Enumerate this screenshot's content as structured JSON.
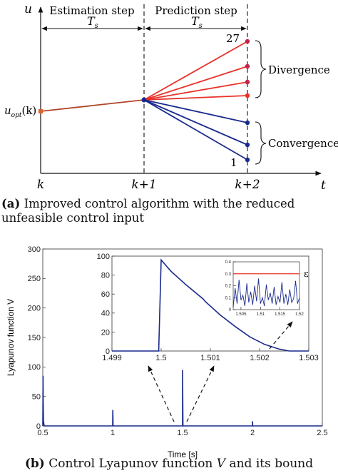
{
  "figure_a": {
    "axis_y_label": "u",
    "axis_x_label": "t",
    "phase_estimation": "Estimation step",
    "phase_prediction": "Prediction step",
    "period_label_1": "T",
    "period_label_1_sub": "s",
    "period_label_2": "T",
    "period_label_2_sub": "s",
    "u_opt_label_main": "u",
    "u_opt_label_sub": "opt",
    "u_opt_label_arg": "(k)",
    "top_index": "27",
    "bottom_index": "1",
    "divergence_label": "Divergence",
    "convergence_label": "Convergence",
    "x_tick_k": "k",
    "x_tick_k1": "k+1",
    "x_tick_k2": "k+2",
    "divergence_color": "#e8322a",
    "convergence_color": "#1a2a8c",
    "history_color": "#b0442a",
    "caption_tag": "(a)",
    "caption_text": "Improved control algorithm with the reduced unfeasible control input"
  },
  "figure_b": {
    "ylabel": "Lyapunov function V",
    "xlabel": "Time [s]",
    "epsilon_label": "ε",
    "caption_tag": "(b)",
    "caption_text_pre": "Control Lyapunov function",
    "caption_text_var": "V",
    "caption_text_post": "and its bound"
  },
  "chart_data": [
    {
      "type": "line",
      "title": "",
      "xlabel": "Time [s]",
      "ylabel": "Lyapunov function V",
      "xlim": [
        0.5,
        2.5
      ],
      "ylim": [
        0,
        300
      ],
      "x_ticks": [
        "0.5",
        "1",
        "1.5",
        "2",
        "2.5"
      ],
      "y_ticks": [
        "0",
        "50",
        "100",
        "150",
        "200",
        "250",
        "300"
      ],
      "grid": false,
      "color": "#1a2a8c",
      "series": [
        {
          "x": [
            0.5,
            0.502,
            0.503,
            0.505,
            0.51,
            1.0,
            1.001,
            1.003,
            1.5,
            1.5001,
            1.503,
            1.5031,
            2.0,
            2.001,
            2.002,
            2.5
          ],
          "y": [
            0,
            85,
            40,
            8,
            0,
            0,
            27,
            0,
            0,
            95,
            0,
            0,
            0,
            8,
            0,
            0
          ]
        }
      ]
    },
    {
      "type": "line",
      "title": "",
      "xlabel": "",
      "ylabel": "",
      "xlim": [
        1.499,
        1.503
      ],
      "ylim": [
        0,
        100
      ],
      "x_ticks": [
        "1.499",
        "1.5",
        "1.501",
        "1.502",
        "1.503"
      ],
      "y_ticks": [
        "0",
        "20",
        "40",
        "60",
        "80",
        "100"
      ],
      "grid": false,
      "color": "#1a2a8c",
      "series": [
        {
          "x": [
            1.499,
            1.49995,
            1.5,
            1.5002,
            1.5005,
            1.50085,
            1.5009,
            1.5012,
            1.5015,
            1.5018,
            1.5021,
            1.5024,
            1.5026,
            1.503
          ],
          "y": [
            0,
            0,
            96,
            84,
            70,
            55,
            52,
            38,
            26,
            15,
            7,
            2,
            0,
            0
          ]
        }
      ]
    },
    {
      "type": "line",
      "title": "",
      "xlabel": "",
      "ylabel": "",
      "xlim": [
        1.503,
        1.52
      ],
      "ylim": [
        0,
        0.4
      ],
      "x_ticks": [
        "1.505",
        "1.51",
        "1.515",
        "1.52"
      ],
      "y_ticks": [
        "0",
        "0.1",
        "0.2",
        "0.3",
        "0.4"
      ],
      "grid": false,
      "series": [
        {
          "name": "ε",
          "color": "#e8322a",
          "x": [
            1.503,
            1.52
          ],
          "y": [
            0.3,
            0.3
          ]
        },
        {
          "color": "#1a2a8c",
          "x": [
            1.503,
            1.5035,
            1.504,
            1.5045,
            1.505,
            1.5055,
            1.506,
            1.5065,
            1.507,
            1.5075,
            1.508,
            1.5085,
            1.509,
            1.5095,
            1.51,
            1.5105,
            1.511,
            1.5115,
            1.512,
            1.5125,
            1.513,
            1.5135,
            1.514,
            1.5145,
            1.515,
            1.5155,
            1.516,
            1.5165,
            1.517,
            1.5175,
            1.518,
            1.5185,
            1.519,
            1.5195,
            1.52
          ],
          "y": [
            0.02,
            0.18,
            0.05,
            0.25,
            0.08,
            0.12,
            0.03,
            0.22,
            0.06,
            0.15,
            0.04,
            0.2,
            0.07,
            0.26,
            0.05,
            0.1,
            0.03,
            0.21,
            0.08,
            0.14,
            0.05,
            0.19,
            0.04,
            0.11,
            0.06,
            0.23,
            0.05,
            0.13,
            0.04,
            0.17,
            0.06,
            0.09,
            0.24,
            0.05,
            0.1
          ]
        }
      ]
    }
  ]
}
